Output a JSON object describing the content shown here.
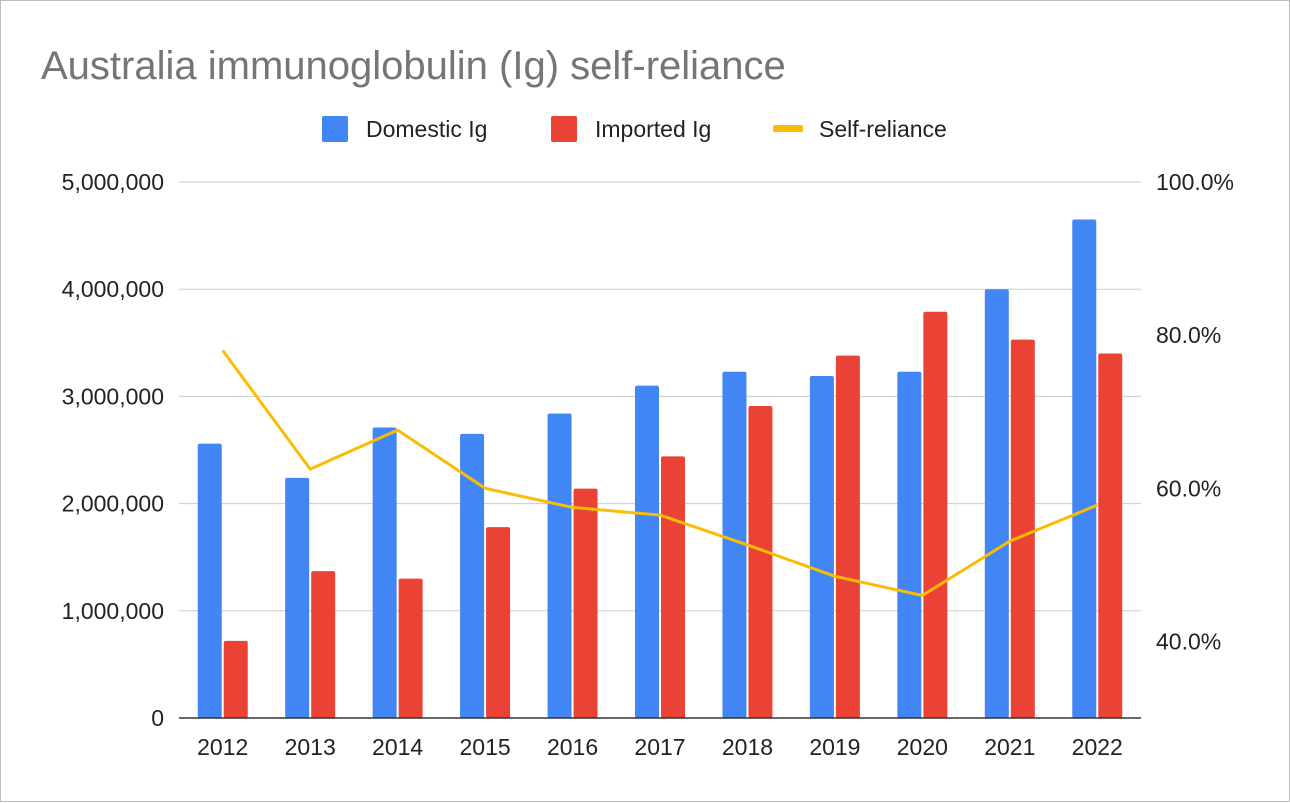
{
  "chart_data": {
    "type": "bar",
    "title": "Australia immunoglobulin (Ig) self-reliance",
    "categories": [
      "2012",
      "2013",
      "2014",
      "2015",
      "2016",
      "2017",
      "2018",
      "2019",
      "2020",
      "2021",
      "2022"
    ],
    "series": [
      {
        "name": "Domestic Ig",
        "type": "bar",
        "axis": "left",
        "color": "#4285f4",
        "values": [
          2560000,
          2240000,
          2710000,
          2650000,
          2840000,
          3100000,
          3230000,
          3190000,
          3230000,
          4000000,
          4650000
        ]
      },
      {
        "name": "Imported Ig",
        "type": "bar",
        "axis": "left",
        "color": "#ea4335",
        "values": [
          720000,
          1370000,
          1300000,
          1780000,
          2140000,
          2440000,
          2910000,
          3380000,
          3790000,
          3530000,
          3400000
        ]
      },
      {
        "name": "Self-reliance",
        "type": "line",
        "axis": "right",
        "color": "#fbbc04",
        "values": [
          78.0,
          62.5,
          67.6,
          60.0,
          57.5,
          56.5,
          52.6,
          48.5,
          46.0,
          53.1,
          57.8
        ]
      }
    ],
    "left_axis": {
      "ylim": [
        0,
        5000000
      ],
      "ticks": [
        0,
        1000000,
        2000000,
        3000000,
        4000000,
        5000000
      ],
      "tick_labels": [
        "0",
        "1,000,000",
        "2,000,000",
        "3,000,000",
        "4,000,000",
        "5,000,000"
      ]
    },
    "right_axis": {
      "ylim": [
        30,
        100
      ],
      "ticks": [
        40,
        60,
        80,
        100
      ],
      "tick_labels": [
        "40.0%",
        "60.0%",
        "80.0%",
        "100.0%"
      ]
    },
    "legend": {
      "position": "top",
      "entries": [
        "Domestic Ig",
        "Imported Ig",
        "Self-reliance"
      ]
    },
    "grid": true,
    "xlabel": "",
    "ylabel": ""
  }
}
